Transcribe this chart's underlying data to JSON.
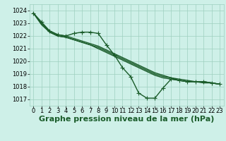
{
  "background_color": "#cef0e8",
  "grid_color": "#9ecfbf",
  "line_color": "#1a5c2a",
  "title": "Graphe pression niveau de la mer (hPa)",
  "xlim": [
    -0.5,
    23.5
  ],
  "ylim": [
    1016.5,
    1024.5
  ],
  "yticks": [
    1017,
    1018,
    1019,
    1020,
    1021,
    1022,
    1023,
    1024
  ],
  "xticks": [
    0,
    1,
    2,
    3,
    4,
    5,
    6,
    7,
    8,
    9,
    10,
    11,
    12,
    13,
    14,
    15,
    16,
    17,
    18,
    19,
    20,
    21,
    22,
    23
  ],
  "series_with_markers": [
    1023.8,
    1023.1,
    1022.4,
    1022.1,
    1022.0,
    1022.2,
    1022.3,
    1022.3,
    1022.2,
    1021.3,
    1020.5,
    1019.5,
    1018.8,
    1017.5,
    1017.1,
    1017.1,
    1017.9,
    1018.6,
    1018.5,
    1018.4,
    1018.4,
    1018.4,
    1018.3,
    1018.2
  ],
  "smooth_lines": [
    [
      1023.8,
      1022.9,
      1022.3,
      1022.0,
      1021.9,
      1021.7,
      1021.5,
      1021.3,
      1021.0,
      1020.7,
      1020.4,
      1020.1,
      1019.8,
      1019.5,
      1019.2,
      1018.9,
      1018.7,
      1018.6,
      1018.5,
      1018.4,
      1018.4,
      1018.3,
      1018.3,
      1018.2
    ],
    [
      1023.8,
      1022.9,
      1022.3,
      1022.0,
      1021.9,
      1021.7,
      1021.5,
      1021.3,
      1021.1,
      1020.8,
      1020.5,
      1020.2,
      1019.9,
      1019.6,
      1019.3,
      1019.0,
      1018.8,
      1018.7,
      1018.5,
      1018.4,
      1018.4,
      1018.4,
      1018.3,
      1018.2
    ],
    [
      1023.8,
      1023.0,
      1022.4,
      1022.1,
      1022.0,
      1021.8,
      1021.6,
      1021.4,
      1021.2,
      1020.9,
      1020.6,
      1020.3,
      1020.0,
      1019.7,
      1019.4,
      1019.1,
      1018.9,
      1018.7,
      1018.6,
      1018.5,
      1018.4,
      1018.4,
      1018.3,
      1018.2
    ]
  ],
  "marker": "+",
  "markersize": 4,
  "linewidth": 1.0,
  "title_fontsize": 8,
  "tick_fontsize": 6
}
